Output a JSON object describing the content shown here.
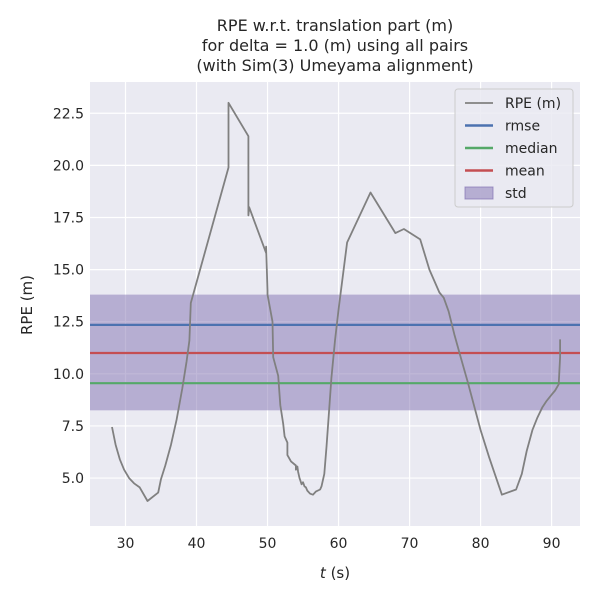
{
  "chart_data": {
    "type": "line",
    "title_lines": [
      "RPE w.r.t. translation part (m)",
      "for delta = 1.0 (m) using all pairs",
      "(with Sim(3) Umeyama alignment)"
    ],
    "xlabel_var": "t",
    "xlabel_unit": " (s)",
    "ylabel": "RPE (m)",
    "xlim": [
      25,
      94
    ],
    "ylim": [
      2.7,
      24.0
    ],
    "xticks": [
      30,
      40,
      50,
      60,
      70,
      80,
      90
    ],
    "yticks": [
      5.0,
      7.5,
      10.0,
      12.5,
      15.0,
      17.5,
      20.0,
      22.5
    ],
    "grid": true,
    "legend_position": "top-right",
    "stats": {
      "rmse": 12.35,
      "median": 9.55,
      "mean": 11.0,
      "std_low": 8.25,
      "std_high": 13.8
    },
    "colors": {
      "rpe": "#808080",
      "rmse": "#4c72b0",
      "median": "#55a868",
      "mean": "#c44e52",
      "std": "#8172b2",
      "background": "#eaeaf2",
      "grid": "#ffffff"
    },
    "legend": [
      {
        "key": "rpe",
        "label": "RPE (m)"
      },
      {
        "key": "rmse",
        "label": "rmse"
      },
      {
        "key": "median",
        "label": "median"
      },
      {
        "key": "mean",
        "label": "mean"
      },
      {
        "key": "std",
        "label": "std"
      }
    ],
    "series": [
      {
        "key": "rpe",
        "x": [
          28.1,
          28.6,
          29.2,
          29.8,
          30.5,
          31.2,
          32.0,
          33.1,
          34.6,
          35.0,
          35.6,
          36.4,
          37.2,
          38.0,
          38.6,
          39.0,
          39.2,
          44.5,
          44.5,
          47.3,
          47.3,
          47.4,
          49.8,
          49.8,
          50.0,
          50.0,
          50.7,
          50.8,
          51.5,
          51.8,
          52.2,
          52.4,
          52.8,
          52.8,
          53.3,
          54.0,
          54.0,
          54.2,
          54.3,
          54.5,
          54.6,
          54.8,
          55.0,
          55.2,
          55.4,
          55.6,
          56.0,
          56.4,
          56.8,
          57.4,
          57.6,
          58.0,
          58.3,
          58.6,
          59.0,
          59.5,
          60.0,
          61.2,
          64.5,
          68.0,
          69.2,
          71.5,
          72.8,
          74.2,
          74.8,
          75.5,
          76.3,
          77.2,
          78.2,
          80.0,
          81.2,
          82.0,
          83.0,
          85.0,
          85.8,
          86.5,
          87.3,
          88.0,
          88.7,
          89.3,
          90.0,
          90.5,
          91.0,
          91.2,
          91.2
        ],
        "y": [
          7.45,
          6.6,
          5.9,
          5.4,
          5.0,
          4.75,
          4.55,
          3.9,
          4.3,
          4.95,
          5.6,
          6.6,
          7.8,
          9.3,
          10.6,
          11.6,
          13.4,
          19.9,
          23.0,
          21.4,
          17.6,
          18.0,
          15.8,
          16.1,
          14.0,
          13.8,
          12.5,
          10.8,
          9.9,
          8.5,
          7.6,
          7.0,
          6.7,
          6.1,
          5.8,
          5.6,
          5.4,
          5.55,
          5.3,
          5.0,
          4.9,
          4.7,
          4.8,
          4.6,
          4.55,
          4.4,
          4.25,
          4.2,
          4.35,
          4.45,
          4.6,
          5.2,
          6.5,
          7.9,
          9.8,
          11.6,
          13.1,
          16.3,
          18.7,
          16.75,
          16.95,
          16.45,
          15.0,
          13.9,
          13.65,
          13.0,
          11.9,
          10.8,
          9.6,
          7.3,
          6.0,
          5.2,
          4.2,
          4.45,
          5.2,
          6.3,
          7.3,
          7.9,
          8.4,
          8.7,
          9.0,
          9.2,
          9.5,
          10.8,
          11.65
        ]
      }
    ]
  }
}
